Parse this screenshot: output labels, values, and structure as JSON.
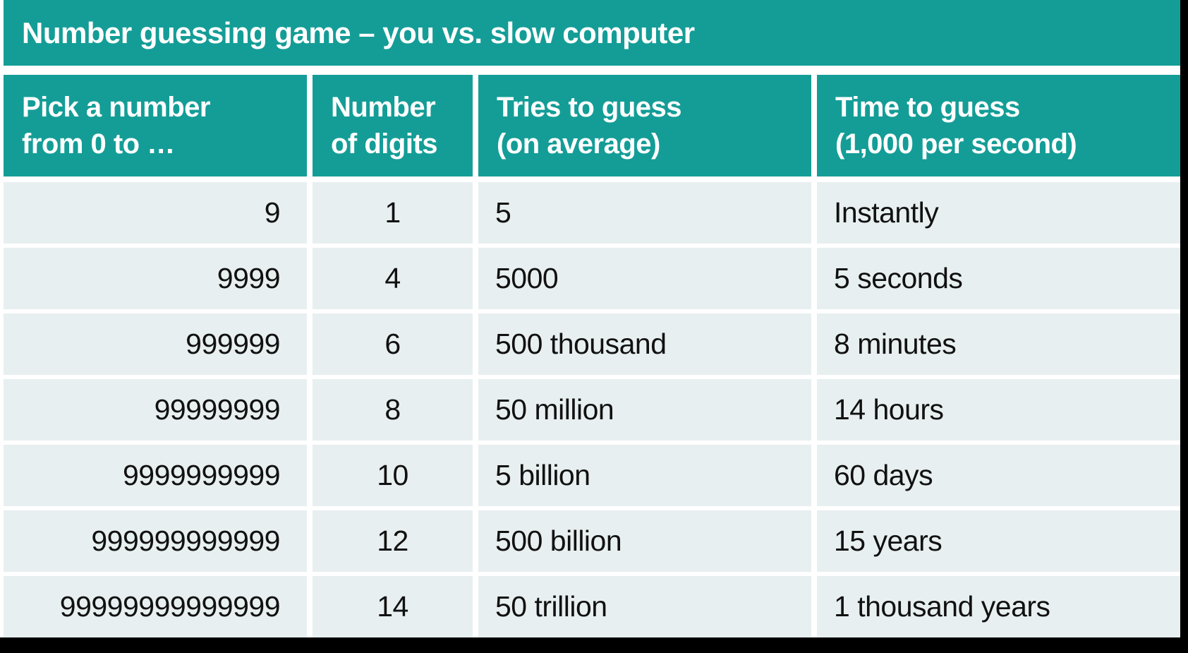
{
  "chart_data": {
    "type": "table",
    "title": "Number guessing game – you vs. slow computer",
    "columns": [
      "Pick a number from 0 to …",
      "Number of digits",
      "Tries to guess (on average)",
      "Time to guess (1,000 per second)"
    ],
    "rows": [
      [
        "9",
        "1",
        "5",
        "Instantly"
      ],
      [
        "9999",
        "4",
        "5000",
        "5 seconds"
      ],
      [
        "999999",
        "6",
        "500 thousand",
        "8 minutes"
      ],
      [
        "99999999",
        "8",
        "50 million",
        "14 hours"
      ],
      [
        "9999999999",
        "10",
        "5 billion",
        "60 days"
      ],
      [
        "999999999999",
        "12",
        "500 billion",
        "15 years"
      ],
      [
        "99999999999999",
        "14",
        "50 trillion",
        "1 thousand years"
      ]
    ]
  },
  "table": {
    "title": "Number guessing game – you vs. slow computer",
    "header": [
      {
        "line1": "Pick a number",
        "line2": "from 0 to …"
      },
      {
        "line1": "Number",
        "line2": "of digits"
      },
      {
        "line1": "Tries to guess",
        "line2": "(on average)"
      },
      {
        "line1": "Time to guess",
        "line2": "(1,000 per second)"
      }
    ],
    "column_aligns": [
      "right",
      "center",
      "left",
      "left"
    ],
    "rows": [
      [
        "9",
        "1",
        "5",
        "Instantly"
      ],
      [
        "9999",
        "4",
        "5000",
        "5 seconds"
      ],
      [
        "999999",
        "6",
        "500 thousand",
        "8 minutes"
      ],
      [
        "99999999",
        "8",
        "50 million",
        "14 hours"
      ],
      [
        "9999999999",
        "10",
        "5 billion",
        "60 days"
      ],
      [
        "999999999999",
        "12",
        "500 billion",
        "15 years"
      ],
      [
        "99999999999999",
        "14",
        "50 trillion",
        "1 thousand years"
      ]
    ]
  },
  "colors": {
    "teal": "#149D97",
    "cell_bg": "#E8EFF0",
    "header_text": "#FFFFFF",
    "body_text": "#111111",
    "frame": "#000000"
  }
}
